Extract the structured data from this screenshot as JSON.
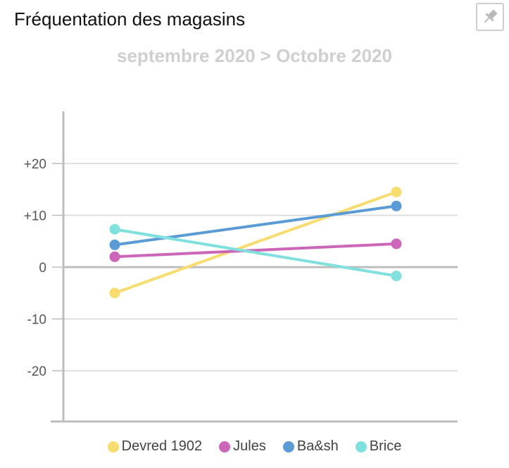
{
  "header": {
    "title": "Fréquentation des magasins",
    "subtitle": "septembre 2020 > Octobre 2020",
    "pin_icon": "pin-icon"
  },
  "chart_data": {
    "type": "line",
    "title": "Fréquentation des magasins",
    "subtitle": "septembre 2020 > Octobre 2020",
    "x": [
      "septembre 2020",
      "Octobre 2020"
    ],
    "ylim": [
      -30,
      30
    ],
    "yticks": [
      -20,
      -10,
      0,
      10,
      20
    ],
    "ytick_labels": [
      "-20",
      "-10",
      "0",
      "+10",
      "+20"
    ],
    "grid": true,
    "legend_position": "bottom",
    "series": [
      {
        "name": "Devred 1902",
        "color": "#f7dc6f",
        "values": [
          -5,
          14.5
        ]
      },
      {
        "name": "Jules",
        "color": "#cc66b8",
        "values": [
          2,
          4.5
        ]
      },
      {
        "name": "Ba&sh",
        "color": "#5b9bd5",
        "values": [
          4.3,
          11.8
        ]
      },
      {
        "name": "Brice",
        "color": "#7fe0de",
        "values": [
          7.3,
          -1.7
        ]
      }
    ]
  }
}
